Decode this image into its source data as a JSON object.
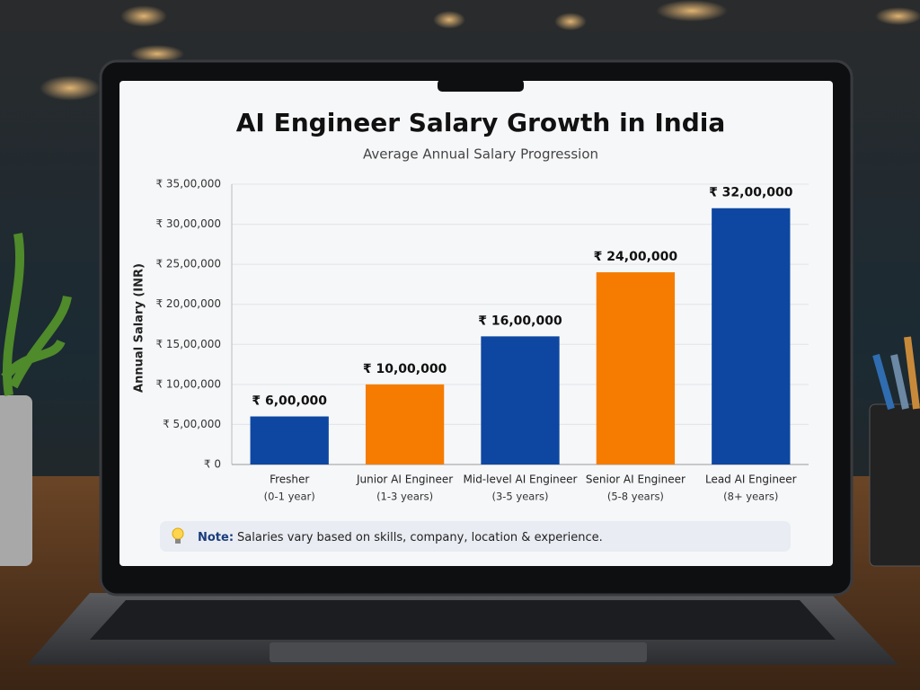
{
  "chart_data": {
    "type": "bar",
    "title": "AI Engineer Salary Growth in India",
    "subtitle": "Average Annual Salary Progression",
    "y_label": "Annual Salary (INR)",
    "categories": [
      "Fresher",
      "Junior AI Engineer",
      "Mid-level AI Engineer",
      "Senior AI Engineer",
      "Lead AI Engineer"
    ],
    "category_sublabels": [
      "(0-1 year)",
      "(1-3 years)",
      "(3-5 years)",
      "(5-8 years)",
      "(8+ years)"
    ],
    "values": [
      600000,
      1000000,
      1600000,
      2400000,
      3200000
    ],
    "value_labels": [
      "₹ 6,00,000",
      "₹ 10,00,000",
      "₹ 16,00,000",
      "₹ 24,00,000",
      "₹ 32,00,000"
    ],
    "colors": [
      "#0d47a1",
      "#f57c00",
      "#0d47a1",
      "#f57c00",
      "#0d47a1"
    ],
    "ylim": [
      0,
      3500000
    ],
    "yticks": [
      {
        "value": 0,
        "label": "₹ 0"
      },
      {
        "value": 500000,
        "label": "₹ 5,00,000"
      },
      {
        "value": 1000000,
        "label": "₹ 10,00,000"
      },
      {
        "value": 1500000,
        "label": "₹ 15,00,000"
      },
      {
        "value": 2000000,
        "label": "₹ 20,00,000"
      },
      {
        "value": 2500000,
        "label": "₹ 25,00,000"
      },
      {
        "value": 3000000,
        "label": "₹ 30,00,000"
      },
      {
        "value": 3500000,
        "label": "₹ 35,00,000"
      }
    ],
    "grid": true,
    "note": {
      "label": "Note:",
      "text": "Salaries vary based on skills, company, location & experience."
    }
  }
}
